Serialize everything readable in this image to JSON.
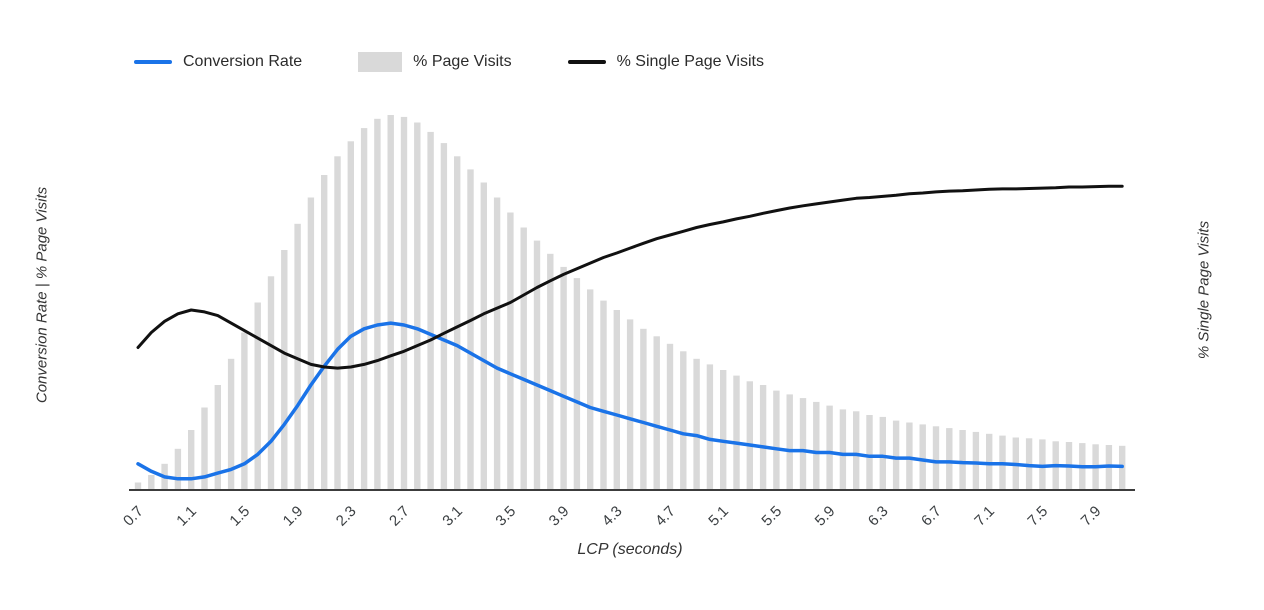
{
  "page": {
    "background": "#ffffff"
  },
  "legend": {
    "items": [
      {
        "label": "Conversion Rate",
        "swatch": "line",
        "color": "#1a73e8"
      },
      {
        "label": "% Page Visits",
        "swatch": "bar",
        "color": "#d9d9d9"
      },
      {
        "label": "% Single Page Visits",
        "swatch": "line",
        "color": "#111111"
      }
    ]
  },
  "axes": {
    "axis_line_color": "#3c3c3c",
    "tick_color": "#3c4043",
    "x_ticks": [
      "0.7",
      "1.1",
      "1.5",
      "1.9",
      "2.3",
      "2.7",
      "3.1",
      "3.5",
      "3.9",
      "4.3",
      "4.7",
      "5.1",
      "5.5",
      "5.9",
      "6.3",
      "6.7",
      "7.1",
      "7.5",
      "7.9"
    ]
  },
  "chart_data": {
    "type": "combo",
    "title": "",
    "xlabel": "LCP (seconds)",
    "ylabel_left": "Conversion Rate | % Page Visits",
    "ylabel_right": "% Single Page Visits",
    "ylim": [
      0,
      100
    ],
    "note": "No numeric y-axis tick labels are shown in the chart; series values are expressed as percent of full plot height (0-100).",
    "x_start": 0.7,
    "x_step": 0.1,
    "x": [
      0.7,
      0.8,
      0.9,
      1.0,
      1.1,
      1.2,
      1.3,
      1.4,
      1.5,
      1.6,
      1.7,
      1.8,
      1.9,
      2.0,
      2.1,
      2.2,
      2.3,
      2.4,
      2.5,
      2.6,
      2.7,
      2.8,
      2.9,
      3.0,
      3.1,
      3.2,
      3.3,
      3.4,
      3.5,
      3.6,
      3.7,
      3.8,
      3.9,
      4.0,
      4.1,
      4.2,
      4.3,
      4.4,
      4.5,
      4.6,
      4.7,
      4.8,
      4.9,
      5.0,
      5.1,
      5.2,
      5.3,
      5.4,
      5.5,
      5.6,
      5.7,
      5.8,
      5.9,
      6.0,
      6.1,
      6.2,
      6.3,
      6.4,
      6.5,
      6.6,
      6.7,
      6.8,
      6.9,
      7.0,
      7.1,
      7.2,
      7.3,
      7.4,
      7.5,
      7.6,
      7.7,
      7.8,
      7.9,
      8.0,
      8.1
    ],
    "series": [
      {
        "name": "% Page Visits",
        "type": "bar",
        "axis": "left",
        "color": "#d9d9d9",
        "values": [
          2,
          4,
          7,
          11,
          16,
          22,
          28,
          35,
          42,
          50,
          57,
          64,
          71,
          78,
          84,
          89,
          93,
          96.5,
          99,
          100,
          99.5,
          98,
          95.5,
          92.5,
          89,
          85.5,
          82,
          78,
          74,
          70,
          66.5,
          63,
          59.5,
          56.5,
          53.5,
          50.5,
          48,
          45.5,
          43,
          41,
          39,
          37,
          35,
          33.5,
          32,
          30.5,
          29,
          28,
          26.5,
          25.5,
          24.5,
          23.5,
          22.5,
          21.5,
          21,
          20,
          19.5,
          18.5,
          18,
          17.5,
          17,
          16.5,
          16,
          15.5,
          15,
          14.5,
          14,
          13.8,
          13.5,
          13,
          12.8,
          12.5,
          12.2,
          12,
          11.8
        ]
      },
      {
        "name": "Conversion Rate",
        "type": "line",
        "axis": "left",
        "color": "#1a73e8",
        "values": [
          7,
          5,
          3.5,
          3,
          3,
          3.5,
          4.5,
          5.5,
          7,
          9.5,
          13,
          17.5,
          22.5,
          28,
          33,
          37.5,
          41,
          43,
          44,
          44.5,
          44,
          43,
          41.5,
          40,
          38.5,
          36.5,
          34.5,
          32.5,
          31,
          29.5,
          28,
          26.5,
          25,
          23.5,
          22,
          21,
          20,
          19,
          18,
          17,
          16,
          15,
          14.5,
          13.5,
          13,
          12.5,
          12,
          11.5,
          11,
          10.5,
          10.5,
          10,
          10,
          9.5,
          9.5,
          9,
          9,
          8.5,
          8.5,
          8,
          7.5,
          7.5,
          7.3,
          7.2,
          7,
          7,
          6.8,
          6.5,
          6.3,
          6.5,
          6.4,
          6.2,
          6.2,
          6.4,
          6.3
        ]
      },
      {
        "name": "% Single Page Visits",
        "type": "line",
        "axis": "right",
        "color": "#111111",
        "values": [
          38,
          42,
          45,
          47,
          48,
          47.5,
          46.5,
          44.5,
          42.5,
          40.5,
          38.5,
          36.5,
          35,
          33.5,
          32.8,
          32.5,
          32.8,
          33.5,
          34.5,
          35.8,
          37,
          38.5,
          40,
          41.8,
          43.5,
          45.2,
          47,
          48.5,
          50,
          52,
          54,
          55.8,
          57.5,
          59,
          60.5,
          62,
          63.2,
          64.5,
          65.8,
          67,
          68,
          69,
          70,
          70.8,
          71.5,
          72.3,
          73,
          73.8,
          74.5,
          75.2,
          75.8,
          76.3,
          76.8,
          77.3,
          77.8,
          78,
          78.3,
          78.6,
          79,
          79.2,
          79.5,
          79.7,
          79.8,
          80,
          80.2,
          80.3,
          80.3,
          80.4,
          80.5,
          80.6,
          80.8,
          80.8,
          80.9,
          81,
          81
        ]
      }
    ]
  }
}
